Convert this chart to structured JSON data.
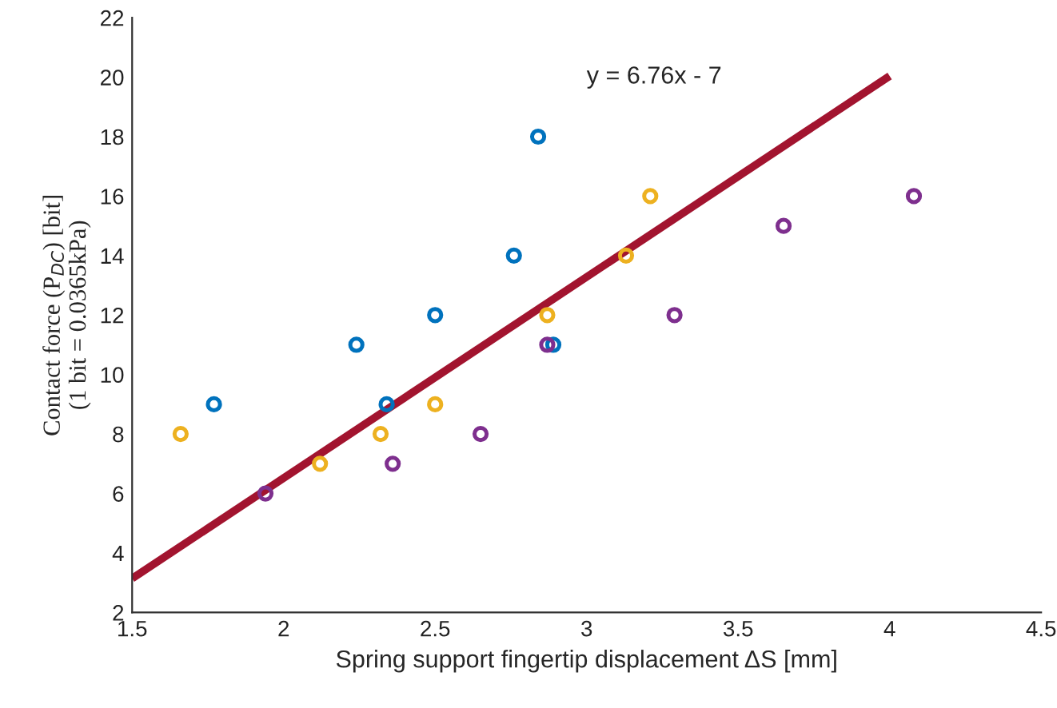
{
  "chart_data": {
    "type": "scatter",
    "xlabel": "Spring support fingertip displacement ΔS [mm]",
    "ylabel": "Contact force (P$_{DC}$) [bit]\n(1 bit = 0.0365kPa)",
    "annotations": [
      "y = 6.76x - 7"
    ],
    "series": [
      {
        "color": "#0072bd",
        "x": [
          1.77,
          2.24,
          2.34,
          2.5,
          2.76,
          2.84,
          2.89
        ],
        "values": [
          9,
          11,
          9,
          12,
          14,
          18,
          11
        ]
      },
      {
        "color": "#edb120",
        "x": [
          1.66,
          2.12,
          2.32,
          2.5,
          2.87,
          3.13,
          3.21
        ],
        "values": [
          8,
          7,
          8,
          9,
          12,
          14,
          16
        ]
      },
      {
        "color": "#7e2f8e",
        "x": [
          1.94,
          2.36,
          2.65,
          2.87,
          3.29,
          3.65,
          4.08
        ],
        "values": [
          6,
          7,
          8,
          11,
          12,
          15,
          16
        ]
      },
      {
        "type": "line",
        "marker": "none",
        "color": "#a2142f",
        "x": [
          1.5,
          4
        ],
        "values": [
          3.14,
          20.04
        ]
      }
    ],
    "marker": "circle",
    "grid": false,
    "legend": false,
    "xlim": [
      1.5,
      4.5
    ],
    "xticks": [
      1.5,
      2,
      2.5,
      3,
      3.5,
      4,
      4.5
    ],
    "ylim": [
      2,
      22
    ],
    "yticks": [
      2,
      4,
      6,
      8,
      10,
      12,
      14,
      16,
      18,
      20,
      22
    ]
  }
}
